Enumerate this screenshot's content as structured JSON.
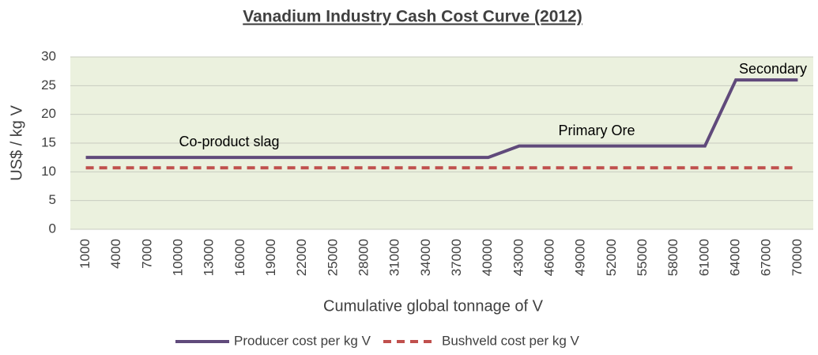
{
  "chart_data": {
    "type": "line",
    "title": "Vanadium Industry Cash Cost Curve (2012)",
    "x_label": "Cumulative global tonnage of V",
    "y_label": "US$ / kg V",
    "categories": [
      "1000",
      "4000",
      "7000",
      "10000",
      "13000",
      "16000",
      "19000",
      "22000",
      "25000",
      "28000",
      "31000",
      "34000",
      "37000",
      "40000",
      "43000",
      "46000",
      "49000",
      "52000",
      "55000",
      "58000",
      "61000",
      "64000",
      "67000",
      "70000"
    ],
    "series": [
      {
        "name": "Producer cost per kg V",
        "color": "#604a7b",
        "dash": false,
        "values": [
          12.5,
          12.5,
          12.5,
          12.5,
          12.5,
          12.5,
          12.5,
          12.5,
          12.5,
          12.5,
          12.5,
          12.5,
          12.5,
          12.5,
          14.5,
          14.5,
          14.5,
          14.5,
          14.5,
          14.5,
          14.5,
          26,
          26,
          26
        ]
      },
      {
        "name": "Bushveld cost per kg V",
        "color": "#c0504d",
        "dash": true,
        "values": [
          10.7,
          10.7,
          10.7,
          10.7,
          10.7,
          10.7,
          10.7,
          10.7,
          10.7,
          10.7,
          10.7,
          10.7,
          10.7,
          10.7,
          10.7,
          10.7,
          10.7,
          10.7,
          10.7,
          10.7,
          10.7,
          10.7,
          10.7,
          10.7
        ]
      }
    ],
    "annotations": [
      "Co-product slag",
      "Primary Ore",
      "Secondary"
    ],
    "ylim": [
      0,
      30
    ],
    "yticks": [
      0,
      5,
      10,
      15,
      20,
      25,
      30
    ],
    "grid": true,
    "plot_background": "#ebf1de",
    "legend": "bottom"
  }
}
